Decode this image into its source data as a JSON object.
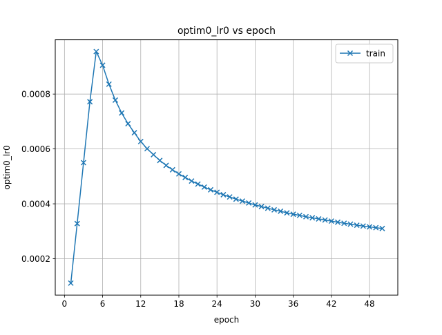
{
  "chart_data": {
    "type": "line",
    "title": "optim0_lr0 vs epoch",
    "xlabel": "epoch",
    "ylabel": "optim0_lr0",
    "xlim": [
      -1.45,
      52.45
    ],
    "ylim": [
      6.74e-05,
      0.0009978
    ],
    "x_ticks": [
      0,
      6,
      12,
      18,
      24,
      30,
      36,
      42,
      48
    ],
    "y_ticks": [
      0.0002,
      0.0004,
      0.0006,
      0.0008
    ],
    "y_tick_labels": [
      "0.0002",
      "0.0004",
      "0.0006",
      "0.0008"
    ],
    "grid": true,
    "legend_position": "upper right",
    "series": [
      {
        "name": "train",
        "color": "#1f77b4",
        "marker": "x",
        "x": [
          1,
          2,
          3,
          4,
          5,
          6,
          7,
          8,
          9,
          10,
          11,
          12,
          13,
          14,
          15,
          16,
          17,
          18,
          19,
          20,
          21,
          22,
          23,
          24,
          25,
          26,
          27,
          28,
          29,
          30,
          31,
          32,
          33,
          34,
          35,
          36,
          37,
          38,
          39,
          40,
          41,
          42,
          43,
          44,
          45,
          46,
          47,
          48,
          49,
          50
        ],
        "y": [
          0.000111,
          0.000328,
          0.00055,
          0.000772,
          0.000955,
          0.000905,
          0.000836,
          0.000778,
          0.000731,
          0.000692,
          0.000659,
          0.000627,
          0.000601,
          0.000579,
          0.000558,
          0.00054,
          0.000524,
          0.000509,
          0.000496,
          0.000483,
          0.000472,
          0.000461,
          0.000451,
          0.000442,
          0.000433,
          0.000425,
          0.000417,
          0.00041,
          0.000403,
          0.000396,
          0.00039,
          0.000384,
          0.000378,
          0.000373,
          0.000367,
          0.000362,
          0.000358,
          0.000353,
          0.000349,
          0.000345,
          0.000341,
          0.000337,
          0.000333,
          0.000329,
          0.000326,
          0.000322,
          0.000319,
          0.000316,
          0.000313,
          0.00031
        ]
      }
    ]
  }
}
